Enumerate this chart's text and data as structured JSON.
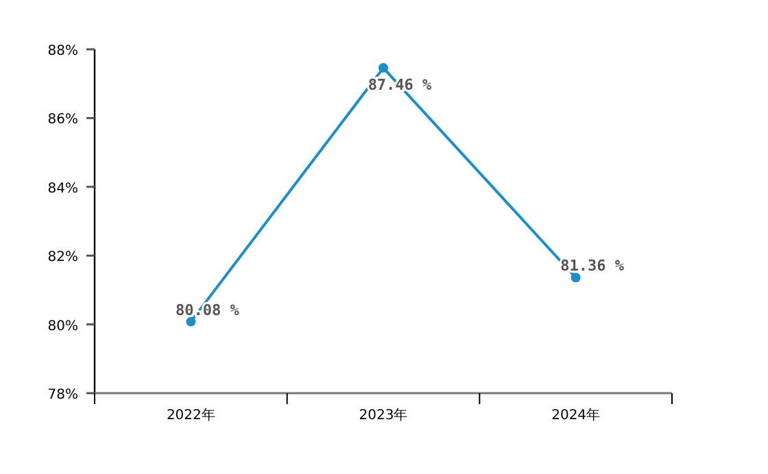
{
  "chart_data": {
    "type": "line",
    "categories": [
      "2022年",
      "2023年",
      "2024年"
    ],
    "series": [
      {
        "color": "#1a8fcf",
        "values": [
          80.08,
          87.46,
          81.36
        ],
        "value_labels": [
          "80.08 %",
          "87.46 %",
          "81.36 %"
        ]
      }
    ],
    "ylim": [
      78,
      88
    ],
    "yticks": [
      {
        "value": 78,
        "label": "78%"
      },
      {
        "value": 80,
        "label": "80%"
      },
      {
        "value": 82,
        "label": "82%"
      },
      {
        "value": 84,
        "label": "84%"
      },
      {
        "value": 86,
        "label": "86%"
      },
      {
        "value": 88,
        "label": "88%"
      }
    ],
    "marker": "circle",
    "grid": false
  }
}
